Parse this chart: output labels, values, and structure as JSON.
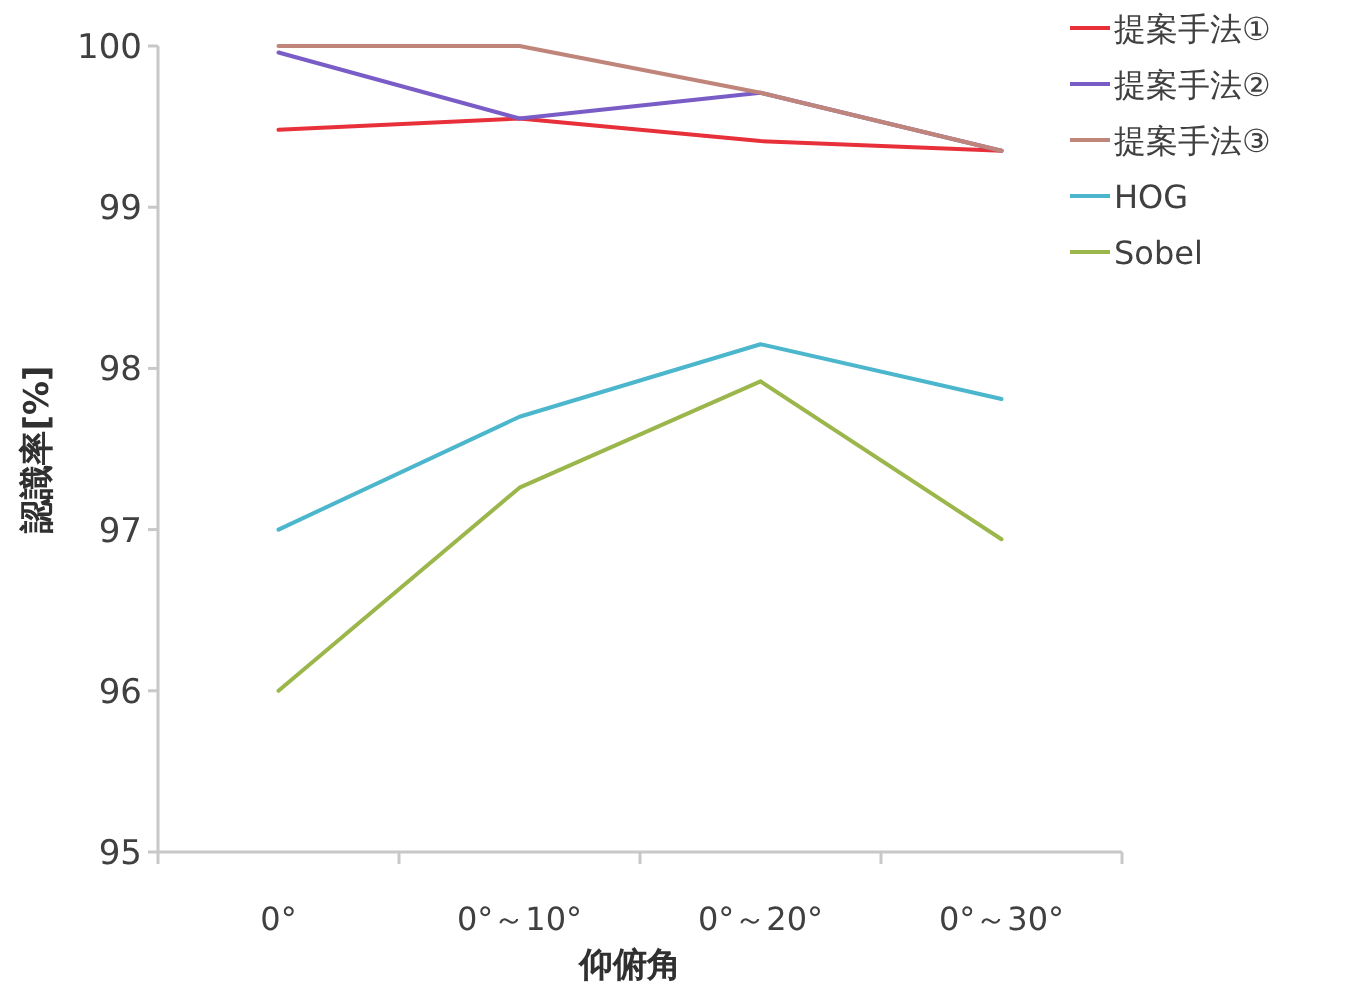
{
  "chart_data": {
    "type": "line",
    "xlabel": "仰俯角",
    "ylabel": "認識率[%]",
    "categories": [
      "0°",
      "0°～10°",
      "0°～20°",
      "0°～30°"
    ],
    "ylim": [
      95,
      100
    ],
    "yticks": [
      95,
      96,
      97,
      98,
      99,
      100
    ],
    "grid": false,
    "legend": "top right",
    "marker": "none",
    "line_style": "solid",
    "series": [
      {
        "name": "提案手法①",
        "color": "#e8303a",
        "values": [
          99.48,
          99.55,
          99.41,
          99.35
        ]
      },
      {
        "name": "提案手法②",
        "color": "#7a5cc7",
        "values": [
          99.96,
          99.55,
          99.71,
          99.35
        ]
      },
      {
        "name": "提案手法③",
        "color": "#c0857a",
        "values": [
          100,
          100,
          99.71,
          99.35
        ]
      },
      {
        "name": "HOG",
        "color": "#4bb6cc",
        "values": [
          97.0,
          97.7,
          98.15,
          97.81
        ]
      },
      {
        "name": "Sobel",
        "color": "#9bb64a",
        "values": [
          96.0,
          97.26,
          97.92,
          96.94
        ]
      }
    ]
  }
}
